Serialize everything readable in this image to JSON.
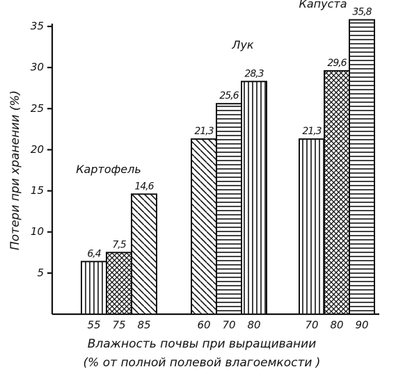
{
  "chart_data": {
    "type": "bar",
    "y_label": "Потери при хранении (%)",
    "x_label": [
      "Влажность почвы при выращивании",
      "(% от полной полевой влагоемкости )"
    ],
    "ylim": [
      0,
      35
    ],
    "yticks": [
      5,
      10,
      15,
      20,
      25,
      30,
      35
    ],
    "color": "#111111",
    "groups": [
      {
        "name": "Картофель",
        "categories": [
          "55",
          "75",
          "85"
        ],
        "values": [
          6.4,
          7.5,
          14.6
        ],
        "value_labels": [
          "6,4",
          "7,5",
          "14,6"
        ],
        "patterns": [
          "vertical",
          "crosshatch",
          "diagonal"
        ]
      },
      {
        "name": "Лук",
        "categories": [
          "60",
          "70",
          "80"
        ],
        "values": [
          21.3,
          25.6,
          28.3
        ],
        "value_labels": [
          "21,3",
          "25,6",
          "28,3"
        ],
        "patterns": [
          "diagonal",
          "horizontal",
          "vertical"
        ]
      },
      {
        "name": "Капуста",
        "categories": [
          "70",
          "80",
          "90"
        ],
        "values": [
          21.3,
          29.6,
          35.8
        ],
        "value_labels": [
          "21,3",
          "29,6",
          "35,8"
        ],
        "patterns": [
          "vertical",
          "crosshatch",
          "horizontal"
        ]
      }
    ]
  }
}
